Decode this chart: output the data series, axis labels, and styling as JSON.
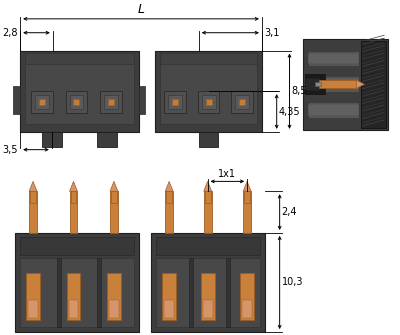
{
  "dark": "#3d3d3d",
  "darker": "#2a2a2a",
  "darkest": "#1e1e1e",
  "mid_dark": "#4a4a4a",
  "slot_gray": "#555555",
  "copper": "#c8803a",
  "copper_light": "#d4956a",
  "copper_dark": "#a05c20",
  "hatch_dark": "#222222",
  "dim_labels": {
    "L": "L",
    "2_8": "2,8",
    "3_1": "3,1",
    "4_35": "4,35",
    "8_5": "8,5",
    "3_5": "3,5",
    "1x1": "1x1",
    "2_4": "2,4",
    "10_3": "10,3"
  },
  "fs": 7.0
}
